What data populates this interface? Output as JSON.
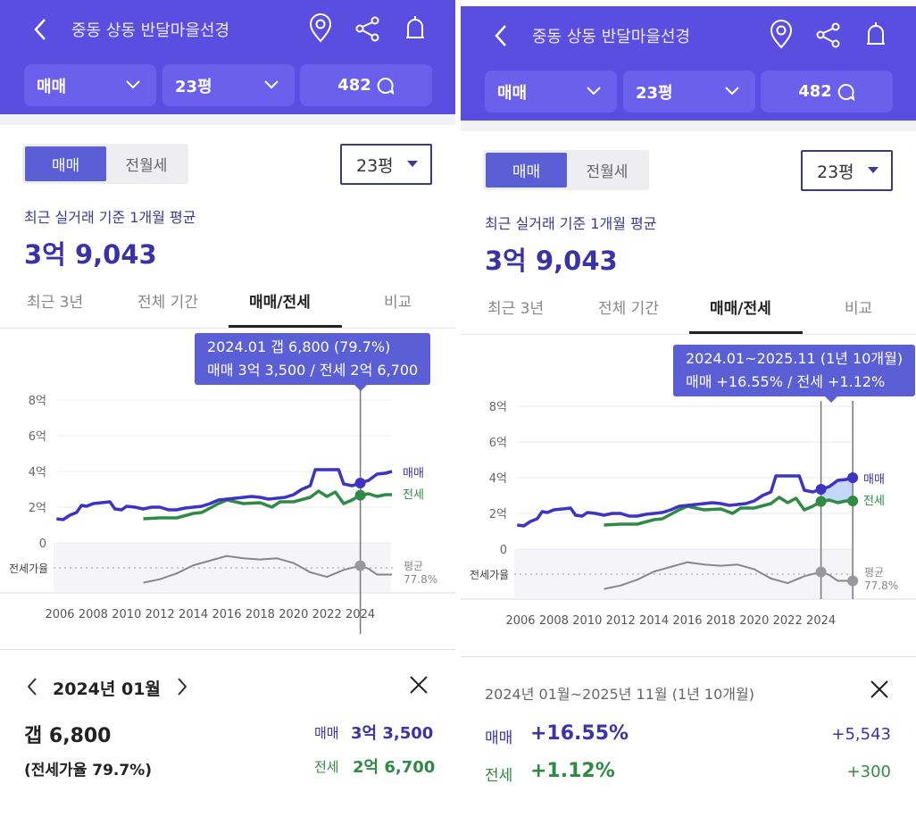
{
  "panels": [
    {
      "header": {
        "title": "중동 상동 반달마을선경",
        "filter_type": "매매",
        "filter_size": "23평",
        "comment_count": "482"
      },
      "segment": {
        "active": "매매",
        "inactive": "전월세"
      },
      "size_select": "23평",
      "subtitle": "최근 실거래 기준 1개월 평균",
      "price": "3억 9,043",
      "tabs": [
        "최근 3년",
        "전체 기간",
        "매매/전세",
        "비교"
      ],
      "tooltip": {
        "line1": "2024.01  갭 6,800 (79.7%)",
        "line2": "매매 3억 3,500 / 전세 2억 6,700"
      },
      "sheet": {
        "date": "2024년 01월",
        "gap": "갭 6,800",
        "ratio": "(전세가율 79.7%)",
        "sale_label": "매매",
        "sale_value": "3억 3,500",
        "jeonse_label": "전세",
        "jeonse_value": "2억 6,700"
      }
    },
    {
      "header": {
        "title": "중동 상동 반달마을선경",
        "filter_type": "매매",
        "filter_size": "23평",
        "comment_count": "482"
      },
      "segment": {
        "active": "매매",
        "inactive": "전월세"
      },
      "size_select": "23평",
      "subtitle": "최근 실거래 기준 1개월 평균",
      "price": "3억 9,043",
      "tabs": [
        "최근 3년",
        "전체 기간",
        "매매/전세",
        "비교"
      ],
      "tooltip": {
        "line1": "2024.01~2025.11 (1년 10개월)",
        "line2": "매매 +16.55%  /  전세 +1.12%"
      },
      "sheet": {
        "range": "2024년 01월~2025년 11월 (1년 10개월)",
        "sale_label": "매매",
        "sale_pct": "+16.55%",
        "sale_diff": "+5,543",
        "jeonse_label": "전세",
        "jeonse_pct": "+1.12%",
        "jeonse_diff": "+300"
      }
    }
  ],
  "colors": {
    "header": "#5a4ee0",
    "accent": "#5a5fd6",
    "sale": "#3d33c4",
    "jeonse": "#2f8a45",
    "ratio": "#888888"
  },
  "chart_data": {
    "type": "line",
    "y_ticks": [
      "8억",
      "6억",
      "4억",
      "2억",
      "0"
    ],
    "x_ticks": [
      "2006",
      "2008",
      "2010",
      "2012",
      "2014",
      "2016",
      "2018",
      "2020",
      "2022",
      "2024"
    ],
    "ylim": [
      0,
      8
    ],
    "series": [
      {
        "name": "매매",
        "unit": "억",
        "points": [
          [
            2005.8,
            1.35
          ],
          [
            2006.2,
            1.3
          ],
          [
            2006.6,
            1.55
          ],
          [
            2007.0,
            1.7
          ],
          [
            2007.3,
            2.1
          ],
          [
            2007.6,
            2.05
          ],
          [
            2008.0,
            2.2
          ],
          [
            2008.5,
            2.25
          ],
          [
            2009.0,
            2.3
          ],
          [
            2009.3,
            1.9
          ],
          [
            2009.7,
            1.85
          ],
          [
            2010.0,
            2.05
          ],
          [
            2010.5,
            2.0
          ],
          [
            2011.0,
            1.9
          ],
          [
            2011.5,
            2.0
          ],
          [
            2012.0,
            2.0
          ],
          [
            2012.5,
            1.85
          ],
          [
            2013.0,
            1.85
          ],
          [
            2013.5,
            1.95
          ],
          [
            2014.0,
            2.0
          ],
          [
            2014.5,
            2.05
          ],
          [
            2015.0,
            2.2
          ],
          [
            2015.5,
            2.4
          ],
          [
            2016.0,
            2.45
          ],
          [
            2016.5,
            2.5
          ],
          [
            2017.0,
            2.55
          ],
          [
            2017.5,
            2.6
          ],
          [
            2018.0,
            2.55
          ],
          [
            2018.5,
            2.45
          ],
          [
            2019.0,
            2.5
          ],
          [
            2019.5,
            2.55
          ],
          [
            2020.0,
            2.7
          ],
          [
            2020.5,
            3.0
          ],
          [
            2021.0,
            3.2
          ],
          [
            2021.3,
            4.1
          ],
          [
            2022.0,
            4.1
          ],
          [
            2022.7,
            4.1
          ],
          [
            2023.0,
            3.3
          ],
          [
            2023.5,
            3.2
          ],
          [
            2024.0,
            3.35
          ],
          [
            2024.5,
            3.5
          ],
          [
            2025.0,
            3.85
          ],
          [
            2025.5,
            3.9
          ],
          [
            2025.9,
            4.0
          ]
        ]
      },
      {
        "name": "전세",
        "unit": "억",
        "points": [
          [
            2011.0,
            1.35
          ],
          [
            2012.0,
            1.4
          ],
          [
            2013.0,
            1.4
          ],
          [
            2014.0,
            1.65
          ],
          [
            2014.5,
            1.7
          ],
          [
            2015.5,
            2.2
          ],
          [
            2016.0,
            2.4
          ],
          [
            2017.0,
            2.2
          ],
          [
            2018.0,
            2.25
          ],
          [
            2018.7,
            2.0
          ],
          [
            2019.2,
            2.3
          ],
          [
            2020.0,
            2.3
          ],
          [
            2021.0,
            2.55
          ],
          [
            2021.5,
            2.9
          ],
          [
            2022.0,
            2.6
          ],
          [
            2022.5,
            2.85
          ],
          [
            2023.0,
            2.2
          ],
          [
            2023.5,
            2.4
          ],
          [
            2024.0,
            2.67
          ],
          [
            2024.5,
            2.75
          ],
          [
            2025.0,
            2.6
          ],
          [
            2025.5,
            2.7
          ],
          [
            2025.9,
            2.7
          ]
        ]
      },
      {
        "name": "전세가율",
        "unit": "%",
        "points": [
          [
            2011.0,
            65
          ],
          [
            2012.0,
            68
          ],
          [
            2013.0,
            73
          ],
          [
            2014.0,
            80
          ],
          [
            2015.0,
            84
          ],
          [
            2016.0,
            88
          ],
          [
            2017.0,
            86
          ],
          [
            2018.0,
            85
          ],
          [
            2019.0,
            86
          ],
          [
            2020.0,
            82
          ],
          [
            2021.0,
            74
          ],
          [
            2022.0,
            70
          ],
          [
            2023.0,
            76
          ],
          [
            2024.0,
            79.7
          ],
          [
            2024.5,
            77
          ],
          [
            2025.0,
            72
          ],
          [
            2025.9,
            72
          ]
        ]
      }
    ],
    "ratio_label": "전세가율",
    "avg_label": "평균",
    "avg_value": "77.8%",
    "avg_ratio": 77.8,
    "selection": [
      {
        "at": 2024.0
      },
      {
        "from": 2024.0,
        "to": 2025.9
      }
    ]
  }
}
